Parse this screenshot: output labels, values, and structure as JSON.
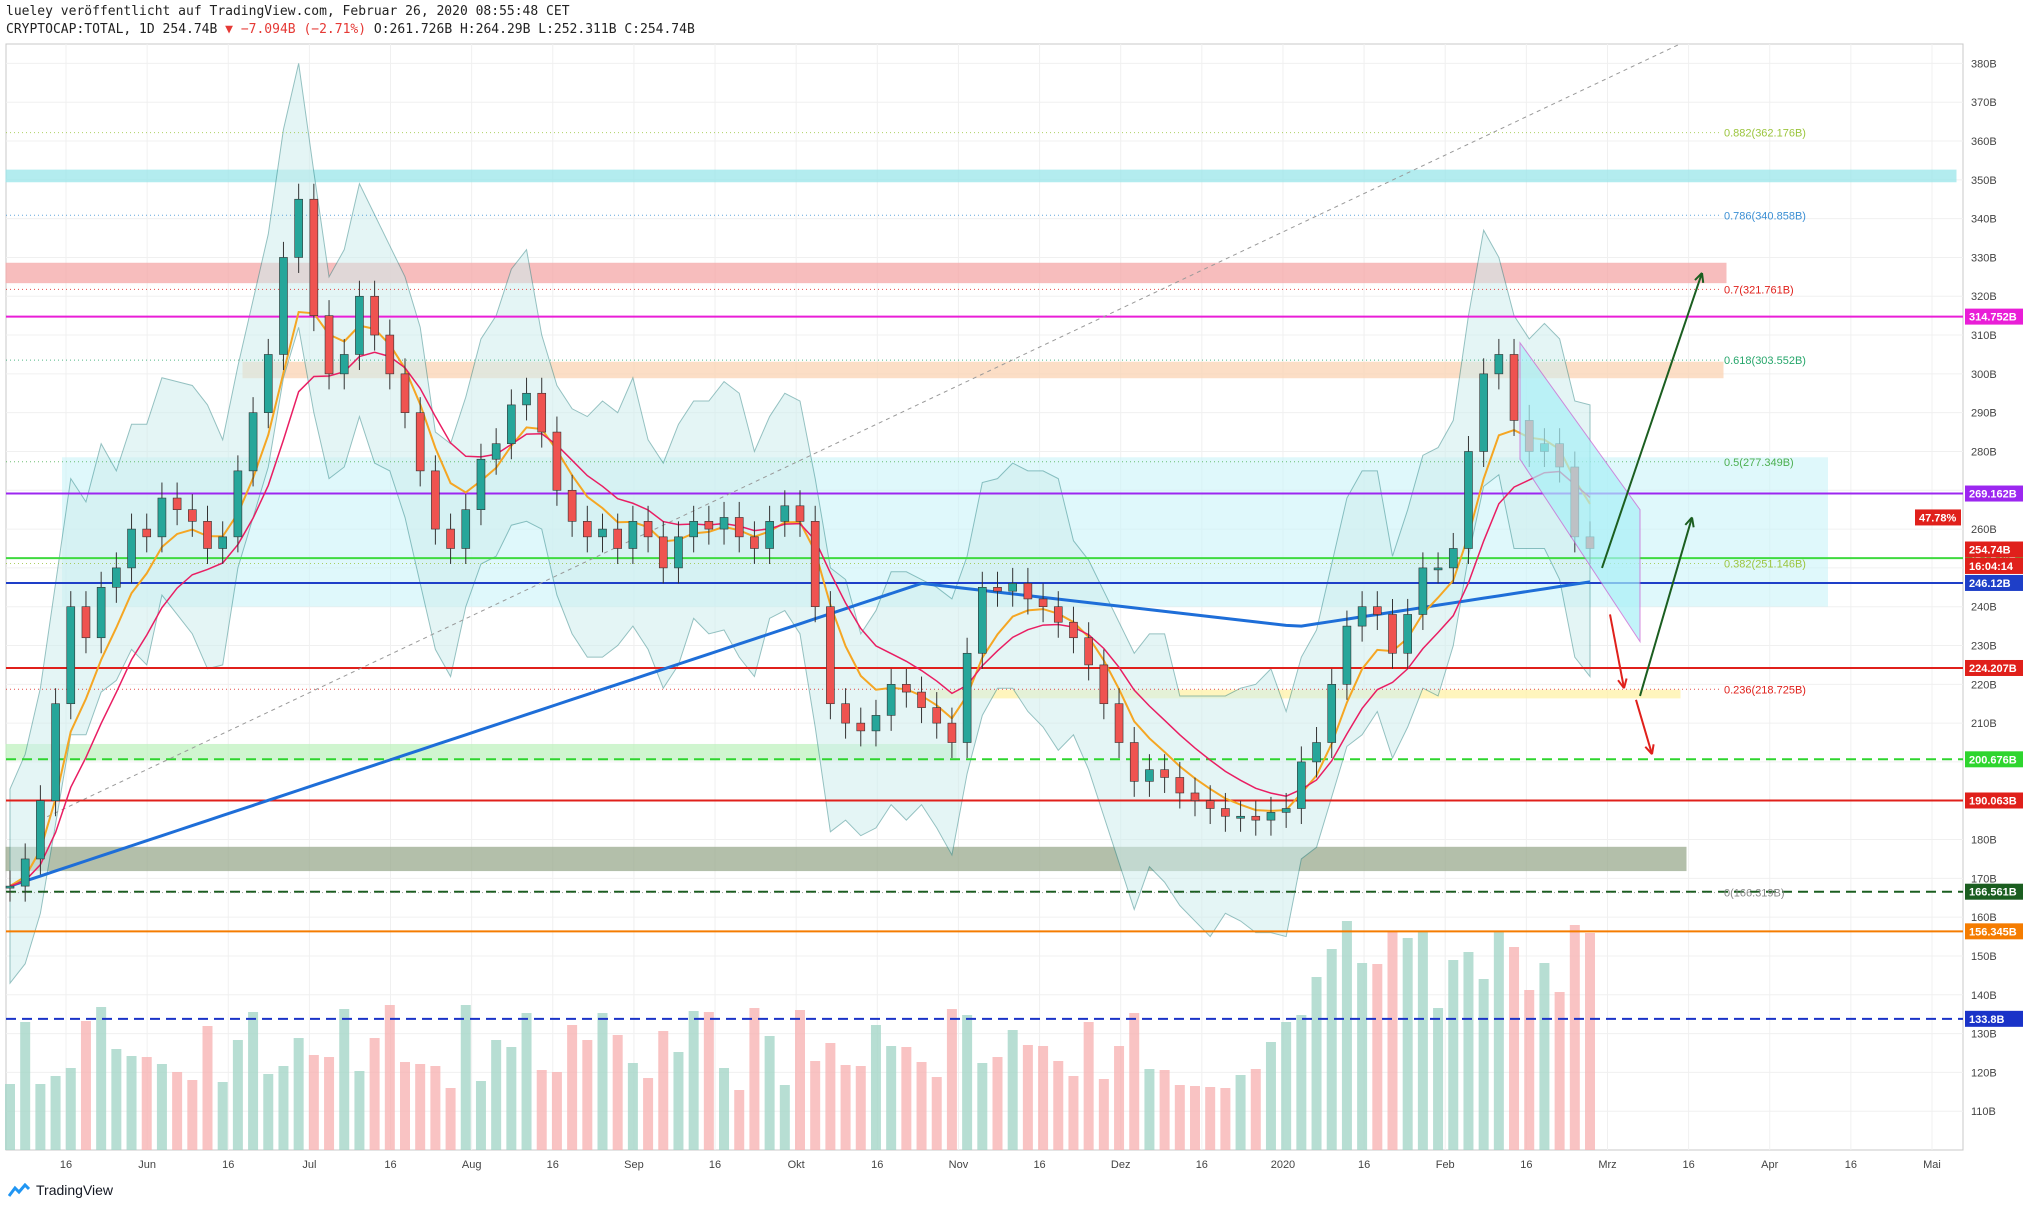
{
  "header": {
    "line1": "lueley veröffentlicht auf TradingView.com, Februar 26, 2020 08:55:48 CET",
    "symbol": "CRYPTOCAP:TOTAL, 1D",
    "last": "254.74B",
    "change": "▼ −7.094B (−2.71%)",
    "ohlc": "O:261.726B H:264.29B L:252.311B C:254.74B"
  },
  "footer": {
    "brand": "TradingView"
  },
  "colors": {
    "up": "#26a69a",
    "down": "#ef5350",
    "ema_orange": "#f5a623",
    "ema_red": "#e91e63",
    "ma200": "#1e6ed8",
    "bb": "#3d8f8f",
    "bb_fill": "#cfeeee",
    "range_fill": "#c9f4f8"
  },
  "chart_data": {
    "type": "line",
    "title": "",
    "xlabel": "",
    "ylabel": "",
    "ylim": [
      100,
      385
    ],
    "x_tick_labels": [
      "16",
      "Jun",
      "16",
      "Jul",
      "16",
      "Aug",
      "16",
      "Sep",
      "16",
      "Okt",
      "16",
      "Nov",
      "16",
      "Dez",
      "16",
      "2020",
      "16",
      "Feb",
      "16",
      "Mrz",
      "16",
      "Apr",
      "16",
      "Mai"
    ],
    "y_tick_labels": [
      "380B",
      "370B",
      "360B",
      "350B",
      "340B",
      "330B",
      "320B",
      "310B",
      "300B",
      "290B",
      "280B",
      "270B",
      "260B",
      "250B",
      "240B",
      "230B",
      "220B",
      "210B",
      "200B",
      "190B",
      "180B",
      "170B",
      "160B",
      "150B",
      "140B",
      "130B",
      "120B",
      "110B"
    ],
    "series": [
      {
        "values": [
          168,
          175,
          190,
          215,
          240,
          232,
          245,
          250,
          260,
          258,
          268,
          265,
          262,
          255,
          258,
          275,
          290,
          305,
          330,
          345,
          315,
          300,
          305,
          320,
          310,
          300,
          290,
          275,
          260,
          255,
          265,
          278,
          282,
          292,
          295,
          285,
          270,
          262,
          258,
          260,
          255,
          262,
          258,
          250,
          258,
          262,
          260,
          263,
          258,
          255,
          262,
          266,
          262,
          240,
          215,
          210,
          208,
          212,
          220,
          218,
          214,
          210,
          205,
          228,
          245,
          244,
          246,
          242,
          240,
          236,
          232,
          225,
          215,
          205,
          195,
          198,
          196,
          192,
          190,
          188,
          186,
          186,
          185,
          187,
          188,
          200,
          205,
          220,
          235,
          240,
          238,
          228,
          238,
          250,
          250,
          255,
          280,
          300,
          305,
          288,
          280,
          282,
          276,
          258,
          255
        ]
      }
    ],
    "horizontal_levels": [
      {
        "label": "314.752B",
        "value": 314.752,
        "color": "#e91ed7"
      },
      {
        "label": "269.162B",
        "value": 269.162,
        "color": "#9c27f0"
      },
      {
        "label": "252.524B",
        "value": 252.524,
        "color": "#3fda3f"
      },
      {
        "label": "246.12B",
        "value": 246.12,
        "color": "#1e3fc8"
      },
      {
        "label": "224.207B",
        "value": 224.207,
        "color": "#e0201b"
      },
      {
        "label": "200.676B",
        "value": 200.676,
        "color": "#2ed52e"
      },
      {
        "label": "190.063B",
        "value": 190.063,
        "color": "#e0201b"
      },
      {
        "label": "166.561B",
        "value": 166.561,
        "color": "#1b5e20"
      },
      {
        "label": "156.345B",
        "value": 156.345,
        "color": "#f57c00"
      },
      {
        "label": "133.8B",
        "value": 133.8,
        "color": "#1a33c8"
      }
    ],
    "fib_levels": [
      {
        "label": "0.882(362.176B)",
        "value": 362.176,
        "color": "#9bc53d"
      },
      {
        "label": "0.786(340.858B)",
        "value": 340.858,
        "color": "#3b8fd4"
      },
      {
        "label": "0.7(321.761B)",
        "value": 321.761,
        "color": "#e0201b"
      },
      {
        "label": "0.618(303.552B)",
        "value": 303.552,
        "color": "#26a66b"
      },
      {
        "label": "0.5(277.349B)",
        "value": 277.349,
        "color": "#4caf50"
      },
      {
        "label": "0.382(251.146B)",
        "value": 251.146,
        "color": "#9bc53d"
      },
      {
        "label": "0.236(218.725B)",
        "value": 218.725,
        "color": "#e0201b"
      },
      {
        "label": "0(166.319B)",
        "value": 166.319,
        "color": "#888888"
      }
    ],
    "price_tags": [
      {
        "label": "47.78%",
        "color": "#e0201b"
      },
      {
        "label": "254.74B",
        "value": 254.74,
        "color": "#e0201b"
      },
      {
        "label": "16:04:14",
        "color": "#e0201b"
      }
    ],
    "zones": [
      {
        "from": 349.5,
        "to": 352.5,
        "color": "#9ae6ea"
      },
      {
        "from": 323.5,
        "to": 328.5,
        "color": "#f5a7a7"
      },
      {
        "from": 299,
        "to": 303,
        "color": "#fbd4b4"
      },
      {
        "from": 216.5,
        "to": 218.5,
        "color": "#fff2a8"
      },
      {
        "from": 200.5,
        "to": 204.5,
        "color": "#bff2bf"
      },
      {
        "from": 172,
        "to": 178,
        "color": "#9aaa8e"
      }
    ]
  }
}
